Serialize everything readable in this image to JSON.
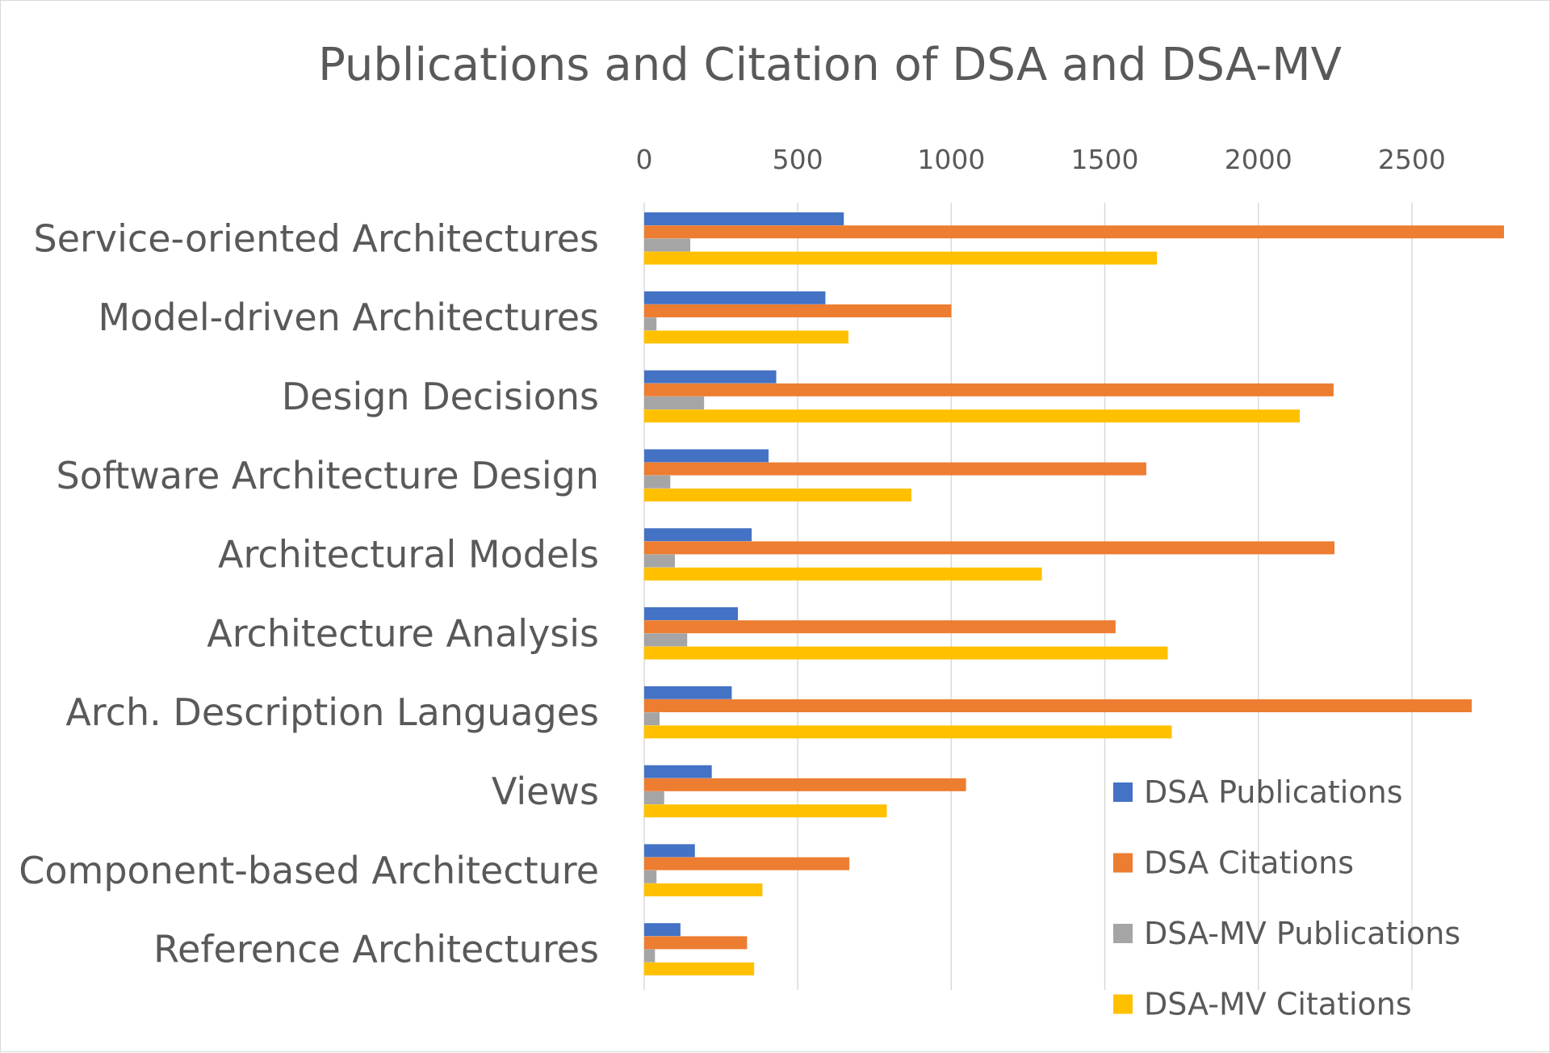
{
  "chart_data": {
    "type": "bar",
    "orientation": "horizontal",
    "title": "Publications and Citation of DSA and DSA-MV",
    "xlabel": "",
    "ylabel": "",
    "xlim": [
      0,
      2800
    ],
    "x_axis_position": "top",
    "ticks": [
      0,
      500,
      1000,
      1500,
      2000,
      2500
    ],
    "tick_labels": [
      "0",
      "500",
      "1000",
      "1500",
      "2000",
      "2500"
    ],
    "grid": true,
    "legend_position": "bottom-right",
    "categories": [
      "Service-oriented Architectures",
      "Model-driven Architectures",
      "Design Decisions",
      "Software Architecture Design",
      "Architectural Models",
      "Architecture Analysis",
      "Arch. Description Languages",
      "Views",
      "Component-based Architecture",
      "Reference Architectures"
    ],
    "series": [
      {
        "name": "DSA Publications",
        "color": "#4472C4",
        "values": [
          650,
          590,
          430,
          405,
          350,
          305,
          285,
          220,
          165,
          118
        ]
      },
      {
        "name": "DSA Citations",
        "color": "#ED7D31",
        "values": [
          2800,
          1000,
          2245,
          1635,
          2248,
          1535,
          2695,
          1048,
          668,
          335
        ]
      },
      {
        "name": "DSA-MV Publications",
        "color": "#A5A5A5",
        "values": [
          150,
          40,
          195,
          85,
          100,
          140,
          50,
          65,
          40,
          35
        ]
      },
      {
        "name": "DSA-MV Citations",
        "color": "#FFC000",
        "values": [
          1670,
          665,
          2135,
          870,
          1295,
          1705,
          1718,
          790,
          385,
          358
        ]
      }
    ]
  }
}
